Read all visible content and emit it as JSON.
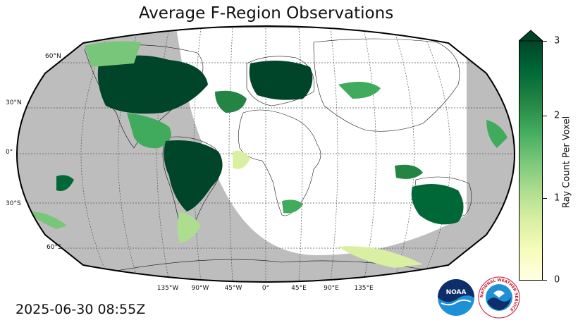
{
  "title": "Average F-Region Observations",
  "timestamp": "2025-06-30 08:55Z",
  "map": {
    "projection": "Robinson",
    "night_shade_color": "#bdbdbd",
    "land_outline_color": "#000000",
    "gridlines": true,
    "lat_labels": [
      "60°N",
      "30°N",
      "0°",
      "30°S",
      "60°S"
    ],
    "lon_labels": [
      "135°W",
      "90°W",
      "45°W",
      "0°",
      "45°E",
      "90°E",
      "135°E"
    ]
  },
  "colorbar": {
    "label": "Ray Count Per Voxel",
    "ticks": [
      "0",
      "1",
      "2",
      "3"
    ],
    "min": 0,
    "max": 3,
    "extend": "max",
    "colormap": "YlGn",
    "colors": [
      "#ffffe5",
      "#f7fcb9",
      "#d9f0a3",
      "#addd8e",
      "#78c679",
      "#41ab5d",
      "#238443",
      "#006837",
      "#004529"
    ]
  },
  "logos": {
    "noaa_text": "NOAA",
    "nws_text": "NATIONAL WEATHER SERVICE"
  }
}
